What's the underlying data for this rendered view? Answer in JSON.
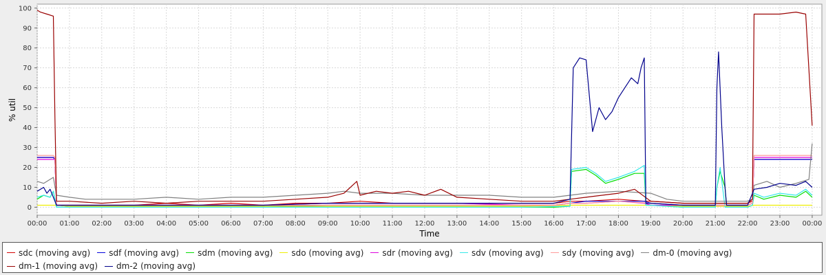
{
  "chart_data": {
    "type": "line",
    "xlabel": "Time",
    "ylabel": "% util",
    "xlim": [
      0,
      24.3
    ],
    "ylim": [
      -4,
      102
    ],
    "grid": true,
    "x_ticks": [
      "00:00",
      "01:00",
      "02:00",
      "03:00",
      "04:00",
      "05:00",
      "06:00",
      "07:00",
      "08:00",
      "09:00",
      "10:00",
      "11:00",
      "12:00",
      "13:00",
      "14:00",
      "15:00",
      "16:00",
      "17:00",
      "18:00",
      "19:00",
      "20:00",
      "21:00",
      "22:00",
      "23:00",
      "00:00"
    ],
    "y_ticks": [
      0,
      10,
      20,
      30,
      40,
      50,
      60,
      70,
      80,
      90,
      100
    ],
    "legend_position": "bottom",
    "series": [
      {
        "name": "sdc (moving avg)",
        "color": "#d40000",
        "x": [
          0,
          0.5,
          0.55,
          0.6,
          1,
          2,
          3,
          4,
          5,
          6,
          7,
          8,
          9,
          10,
          11,
          12,
          13,
          14,
          15,
          16,
          16.5,
          17,
          18,
          18.8,
          19,
          20,
          21,
          21.5,
          22,
          22.15,
          22.2,
          23,
          23.8,
          24
        ],
        "y": [
          25,
          25,
          24,
          1,
          1,
          1,
          1,
          2,
          1,
          2,
          1,
          2,
          2,
          3,
          2,
          2,
          2,
          2,
          2,
          2,
          3,
          3,
          4,
          3,
          3,
          2,
          2,
          2,
          2,
          3,
          24,
          24,
          24,
          24
        ]
      },
      {
        "name": "sdf (moving avg)",
        "color": "#0000dd",
        "x": [
          0,
          0.5,
          0.55,
          0.6,
          1,
          3,
          5,
          7,
          9,
          11,
          13,
          15,
          16,
          16.5,
          17,
          18,
          18.8,
          19,
          20,
          21,
          21.5,
          22,
          22.15,
          22.2,
          23,
          23.8,
          24
        ],
        "y": [
          25,
          25,
          24,
          1,
          0.5,
          0.5,
          0.5,
          0.5,
          1,
          1,
          1,
          1,
          1,
          2,
          3,
          3,
          3,
          2,
          1,
          1,
          1,
          1,
          2,
          24,
          24,
          24,
          24
        ]
      },
      {
        "name": "sdm (moving avg)",
        "color": "#00dd00",
        "x": [
          0,
          0.2,
          0.4,
          0.5,
          0.6,
          1,
          3,
          5,
          7,
          9,
          11,
          13,
          15,
          16,
          16.5,
          16.55,
          17,
          17.3,
          17.6,
          18,
          18.5,
          18.8,
          18.85,
          19,
          20,
          21,
          21.05,
          21.15,
          21.3,
          21.35,
          22,
          22.15,
          22.2,
          22.5,
          23,
          23.5,
          23.8,
          24
        ],
        "y": [
          4,
          6,
          5,
          8,
          0,
          0,
          0,
          0,
          0,
          0,
          0,
          0,
          0,
          0,
          0.5,
          18,
          19,
          16,
          12,
          14,
          17,
          17,
          1,
          1,
          0,
          0,
          10,
          18,
          10,
          0,
          0,
          1,
          6,
          4,
          6,
          5,
          8,
          5
        ]
      },
      {
        "name": "sdo (moving avg)",
        "color": "#eeee00",
        "x": [
          0,
          0.6,
          1,
          5,
          10,
          15,
          16.5,
          17,
          19,
          20,
          22,
          22.2,
          24
        ],
        "y": [
          1,
          1,
          0.5,
          0.5,
          0.5,
          0.5,
          1,
          1,
          1,
          0.5,
          0.5,
          1,
          1
        ]
      },
      {
        "name": "sdr (moving avg)",
        "color": "#dd00dd",
        "x": [
          0,
          0.5,
          0.55,
          0.6,
          1,
          3,
          5,
          7,
          9,
          11,
          13,
          15,
          16,
          16.5,
          17,
          18,
          18.8,
          19,
          20,
          21,
          21.5,
          22,
          22.15,
          22.2,
          23,
          23.8,
          24
        ],
        "y": [
          24,
          24,
          24,
          1,
          1,
          1,
          1,
          1,
          2,
          2,
          2,
          1,
          1,
          2,
          2,
          3,
          2,
          1,
          1,
          1,
          1,
          1,
          2,
          25,
          25,
          25,
          25
        ]
      },
      {
        "name": "sdv (moving avg)",
        "color": "#33e8e8",
        "x": [
          0,
          0.2,
          0.4,
          0.5,
          0.6,
          1,
          5,
          10,
          15,
          16.5,
          16.55,
          17,
          17.3,
          17.6,
          18,
          18.5,
          18.8,
          18.85,
          19,
          20,
          21,
          21.05,
          21.15,
          21.3,
          22,
          22.15,
          22.2,
          22.5,
          23,
          23.5,
          23.8,
          24
        ],
        "y": [
          5,
          6,
          5,
          8,
          0,
          0,
          0,
          0,
          0,
          0.5,
          19,
          20,
          17,
          13,
          15,
          18,
          21,
          1,
          1,
          0,
          0,
          10,
          20,
          0,
          0,
          1,
          7,
          5,
          7,
          6,
          9,
          6
        ]
      },
      {
        "name": "sdy (moving avg)",
        "color": "#ff9999",
        "x": [
          0,
          0.5,
          0.55,
          0.6,
          1,
          5,
          10,
          15,
          16,
          16.5,
          17,
          18,
          19,
          20,
          22,
          22.15,
          22.2,
          23,
          24
        ],
        "y": [
          26,
          26,
          25,
          1,
          1,
          1,
          1,
          1,
          1,
          2,
          2,
          3,
          2,
          1,
          1,
          2,
          26,
          26,
          26
        ]
      },
      {
        "name": "dm-0 (moving avg)",
        "color": "#808080",
        "x": [
          0,
          0.2,
          0.4,
          0.5,
          0.6,
          1,
          1.5,
          2,
          3,
          4,
          5,
          6,
          7,
          8,
          9,
          9.5,
          10,
          11,
          12,
          13,
          14,
          15,
          16,
          16.5,
          17,
          18,
          19,
          19.5,
          20,
          21,
          22,
          22.15,
          22.2,
          22.6,
          23,
          23.5,
          23.9,
          24
        ],
        "y": [
          13,
          12,
          14,
          15,
          6,
          5,
          4,
          4,
          4,
          5,
          4,
          5,
          5,
          6,
          7,
          8,
          7,
          7,
          6,
          6,
          6,
          5,
          5,
          6,
          7,
          8,
          7,
          4,
          3,
          3,
          3,
          4,
          11,
          13,
          10,
          12,
          14,
          32
        ]
      },
      {
        "name": "dm-1 (moving avg)",
        "color": "#990000",
        "x": [
          0,
          0.1,
          0.3,
          0.5,
          0.55,
          0.6,
          1,
          2,
          3,
          4,
          5,
          6,
          7,
          8,
          9,
          9.5,
          9.9,
          10,
          10.5,
          11,
          11.5,
          12,
          12.5,
          13,
          14,
          15,
          16,
          16.5,
          17,
          18,
          18.5,
          19,
          20,
          21,
          22,
          22.15,
          22.2,
          23,
          23.5,
          23.8,
          24
        ],
        "y": [
          99,
          98,
          97,
          96,
          45,
          3,
          3,
          2,
          3,
          2,
          3,
          3,
          3,
          4,
          5,
          7,
          13,
          6,
          8,
          7,
          8,
          6,
          9,
          5,
          4,
          3,
          3,
          4,
          5,
          7,
          9,
          3,
          2,
          2,
          2,
          4,
          97,
          97,
          98,
          97,
          41
        ]
      },
      {
        "name": "dm-2 (moving avg)",
        "color": "#00008b",
        "x": [
          0,
          0.2,
          0.3,
          0.4,
          0.5,
          0.6,
          1,
          3,
          5,
          7,
          9,
          11,
          13,
          15,
          16,
          16.5,
          16.6,
          16.8,
          17,
          17.2,
          17.4,
          17.6,
          17.8,
          18,
          18.2,
          18.4,
          18.6,
          18.7,
          18.8,
          18.85,
          19,
          20,
          21,
          21.05,
          21.1,
          21.2,
          21.3,
          21.35,
          22,
          22.2,
          22.6,
          23,
          23.5,
          23.8,
          24
        ],
        "y": [
          8,
          10,
          7,
          9,
          5,
          1,
          1,
          1,
          1,
          1,
          2,
          2,
          2,
          2,
          2,
          4,
          70,
          75,
          74,
          38,
          50,
          44,
          48,
          55,
          60,
          65,
          62,
          70,
          75,
          2,
          2,
          1,
          1,
          60,
          78,
          40,
          10,
          1,
          1,
          9,
          10,
          12,
          11,
          13,
          10
        ]
      }
    ]
  }
}
